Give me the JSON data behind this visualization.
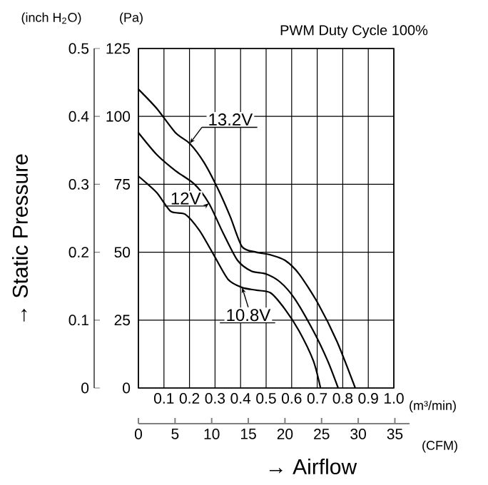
{
  "chart_data": {
    "type": "line",
    "title": "PWM Duty Cycle 100%",
    "xlabel": "→ Airflow",
    "ylabel": "→ Static Pressure",
    "xlim": [
      0,
      1
    ],
    "xticks": [
      {
        "value": 0,
        "label": null
      },
      0.1,
      0.2,
      0.3,
      0.4,
      0.5,
      0.6,
      0.7,
      0.8,
      0.9,
      {
        "value": 1,
        "label": "1.0"
      }
    ],
    "ylim": [
      0,
      0.5
    ],
    "yticks": [
      0,
      0.1,
      0.2,
      0.3,
      0.4,
      0.5
    ],
    "y2lim": [
      0,
      125
    ],
    "y2ticks": [
      0,
      25,
      50,
      75,
      100,
      125
    ],
    "x2lim": [
      0,
      37
    ],
    "x2ticks": [
      0,
      5,
      10,
      15,
      20,
      25,
      30,
      35
    ],
    "grid": true,
    "annotations": [
      "(inch H$_{2}$O)",
      "(Pa)",
      "(m³/min)",
      "(CFM)"
    ],
    "series": [
      {
        "name": "13.2V",
        "color": "#000000",
        "axis": "y2",
        "x": [
          0,
          0.071,
          0.145,
          0.201,
          0.257,
          0.313,
          0.36,
          0.406,
          0.462,
          0.518,
          0.574,
          0.629,
          0.704,
          0.778,
          0.849
        ],
        "values": [
          110,
          103,
          94,
          90,
          83,
          73,
          63,
          52,
          50,
          49,
          47,
          42,
          31,
          17,
          0
        ]
      },
      {
        "name": "12V",
        "color": "#000000",
        "axis": "y2",
        "x": [
          0,
          0.071,
          0.145,
          0.22,
          0.276,
          0.332,
          0.388,
          0.443,
          0.499,
          0.555,
          0.611,
          0.685,
          0.741,
          0.782
        ],
        "values": [
          94,
          86,
          80,
          75,
          68,
          57,
          47,
          43,
          42,
          39,
          33,
          21,
          10,
          0
        ]
      },
      {
        "name": "10.8V",
        "color": "#000000",
        "axis": "y2",
        "x": [
          0,
          0.071,
          0.127,
          0.183,
          0.239,
          0.295,
          0.351,
          0.406,
          0.462,
          0.518,
          0.574,
          0.629,
          0.685,
          0.713
        ],
        "values": [
          78,
          72,
          65,
          64,
          58,
          49,
          40,
          37,
          36,
          35,
          29,
          21,
          10,
          0
        ]
      }
    ]
  }
}
